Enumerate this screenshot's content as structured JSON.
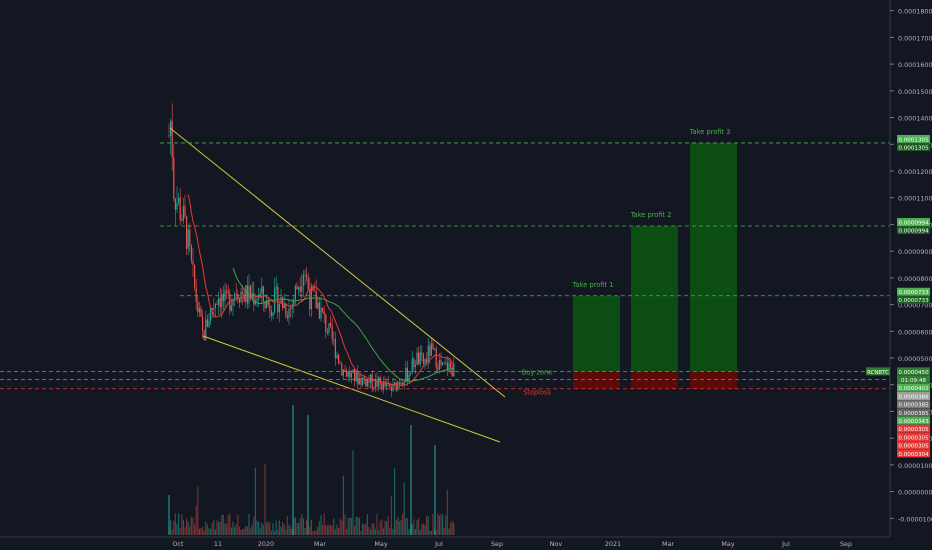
{
  "chart_data": {
    "type": "candlestick",
    "symbol": "RCNBTC",
    "x_ticks": [
      "Oct",
      "11",
      "2020",
      "Mar",
      "May",
      "Jul",
      "Sep",
      "Nov",
      "2021",
      "Mar",
      "May",
      "Jul",
      "Sep"
    ],
    "y_ticks": [
      "0.0001800",
      "0.0001700",
      "0.0001600",
      "0.0001500",
      "0.0001400",
      "0.0001300",
      "0.0001200",
      "0.0001100",
      "0.0001000",
      "0.0000900",
      "0.0000800",
      "0.0000700",
      "0.0000600",
      "0.0000500",
      "0.0000400",
      "0.0000300",
      "0.0000200",
      "0.0000100",
      "0.0000000",
      "-0.0000100"
    ],
    "ylim": [
      -1.25e-05,
      0.0001825
    ],
    "price_series": {
      "x": [
        "Oct",
        "11",
        "2020",
        "Mar",
        "May",
        "Jul"
      ],
      "values": [
        0.000132,
        5.8e-05,
        7.5e-05,
        7.3e-05,
        4.3e-05,
        4.5e-05
      ]
    },
    "annotations": [
      {
        "label": "Take profit 1",
        "price": 7.33e-05,
        "value": "0.0000733"
      },
      {
        "label": "Take profit 2",
        "price": 9.94e-05,
        "value": "0.0000994"
      },
      {
        "label": "Take profit 3",
        "price": 0.0001305,
        "value": "0.0001305"
      },
      {
        "label": "Buy zone",
        "price": 4.5e-05,
        "value": "0.0000450"
      },
      {
        "label": "Stoploss",
        "price": 3.85e-05,
        "value": "0.0000385"
      }
    ],
    "price_labels": [
      {
        "text": "0.0001305",
        "color": "#4caf50"
      },
      {
        "text": "0.0001305",
        "color": "#1b5e20"
      },
      {
        "text": "0.0000994",
        "color": "#4caf50"
      },
      {
        "text": "0.0000994",
        "color": "#1b5e20"
      },
      {
        "text": "0.0000733",
        "color": "#4caf50"
      },
      {
        "text": "0.0000733",
        "color": "#1b5e20"
      },
      {
        "text": "0.0000450",
        "color": "#2e7d32"
      },
      {
        "text": "01:09:48",
        "color": "#2e7d32"
      },
      {
        "text": "0.0000402",
        "color": "#4caf50"
      },
      {
        "text": "0.0000386",
        "color": "#9e9e9e"
      },
      {
        "text": "0.0000385",
        "color": "#757575"
      },
      {
        "text": "0.0000385",
        "color": "#616161"
      },
      {
        "text": "0.0000343",
        "color": "#4caf50"
      },
      {
        "text": "0.0000305",
        "color": "#e53935"
      },
      {
        "text": "0.0000305",
        "color": "#e53935"
      },
      {
        "text": "0.0000305",
        "color": "#e53935"
      },
      {
        "text": "0.0000304",
        "color": "#e53935"
      }
    ],
    "colors": {
      "background": "#131722",
      "up": "#26a69a",
      "down": "#ef5350",
      "trendline": "#d4c63a",
      "target_zone": "#0b4d12",
      "stop_zone": "#5e0a0a",
      "dashed_green": "#4caf50",
      "dashed_red": "#e53935"
    }
  }
}
